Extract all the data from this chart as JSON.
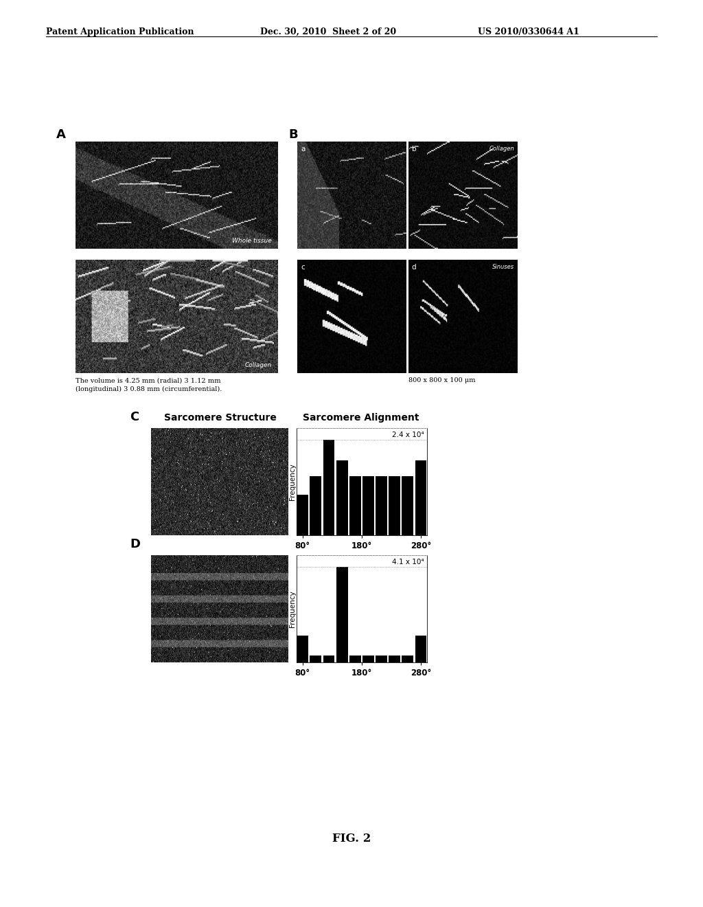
{
  "header_left": "Patent Application Publication",
  "header_mid": "Dec. 30, 2010  Sheet 2 of 20",
  "header_right": "US 2010/0330644 A1",
  "label_A": "A",
  "label_B": "B",
  "label_C": "C",
  "label_D": "D",
  "label_Ba": "a",
  "label_Bb": "b",
  "label_Bc": "c",
  "label_Bd": "d",
  "text_whole_tissue": "Whole tissue",
  "text_collagen_A": "Collagen",
  "text_collagen_B": "Collagen",
  "text_sinuses": "Sinuses",
  "text_volume": "The volume is 4.25 mm (radial) 3 1.12 mm\n(longitudinal) 3 0.88 mm (circumferential).",
  "text_size": "800 x 800 x 100 μm",
  "title_structure": "Sarcomere Structure",
  "title_alignment": "Sarcomere Alignment",
  "ylabel_freq": "Frequency",
  "xticks_C": [
    "80°",
    "180°",
    "280°"
  ],
  "xticks_D": [
    "80°",
    "180°",
    "280°"
  ],
  "ymax_C_label": "2.4 x 10⁴",
  "ymax_D_label": "4.1 x 10⁴",
  "hist_C_values": [
    0.42,
    0.62,
    1.0,
    0.78,
    0.62,
    0.62,
    0.62,
    0.62,
    0.62,
    0.78
  ],
  "hist_D_values": [
    0.28,
    0.07,
    0.07,
    1.0,
    0.07,
    0.07,
    0.07,
    0.07,
    0.07,
    0.28
  ],
  "fig_caption": "FIG. 2",
  "bg_color": "#ffffff",
  "image_bg": "#000000",
  "bar_color": "#000000",
  "text_color": "#000000"
}
